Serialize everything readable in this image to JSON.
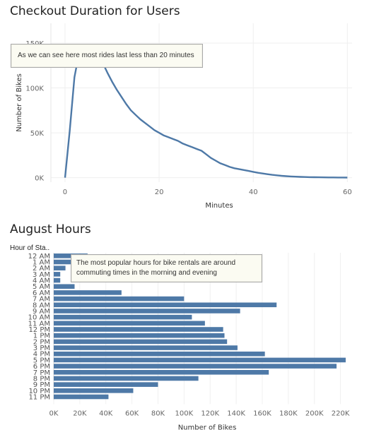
{
  "chart_data": [
    {
      "type": "line",
      "title": "Checkout Duration for Users",
      "xlabel": "Minutes",
      "ylabel": "Number of Bikes",
      "xlim": [
        -3,
        61
      ],
      "ylim": [
        -5000,
        172000
      ],
      "x_ticks": [
        0,
        20,
        40,
        60
      ],
      "x_tick_labels": [
        "0",
        "20",
        "40",
        "60"
      ],
      "y_ticks": [
        0,
        50000,
        100000,
        150000
      ],
      "y_tick_labels": [
        "0K",
        "50K",
        "100K",
        "150K"
      ],
      "color": "#4e79a7",
      "annotation": "As we can see here most rides last less than 20 minutes",
      "x": [
        0,
        1,
        2,
        3,
        4,
        5,
        6,
        7,
        8,
        9,
        10,
        11,
        12,
        13,
        14,
        15,
        16,
        17,
        18,
        19,
        20,
        21,
        22,
        23,
        24,
        25,
        26,
        27,
        28,
        29,
        30,
        31,
        32,
        33,
        34,
        35,
        36,
        37,
        38,
        39,
        40,
        41,
        42,
        43,
        44,
        45,
        46,
        47,
        48,
        49,
        50,
        51,
        52,
        53,
        54,
        55,
        56,
        57,
        58,
        59,
        60
      ],
      "y": [
        0,
        52000,
        112000,
        139000,
        146000,
        147000,
        145000,
        137000,
        128000,
        117000,
        107000,
        98000,
        90000,
        82000,
        75000,
        70000,
        65000,
        61000,
        57000,
        53000,
        50000,
        47000,
        45000,
        43000,
        41000,
        38000,
        36000,
        34000,
        32000,
        30000,
        26000,
        22000,
        19000,
        16000,
        14000,
        12000,
        10500,
        9500,
        8500,
        7500,
        6500,
        5500,
        4700,
        3900,
        3200,
        2600,
        2100,
        1700,
        1400,
        1100,
        900,
        750,
        620,
        500,
        420,
        350,
        300,
        250,
        200,
        160,
        120
      ]
    },
    {
      "type": "bar",
      "orientation": "horizontal",
      "title": "August Hours",
      "header": "Hour of Sta..",
      "xlabel": "Number of Bikes",
      "xlim": [
        0,
        230000
      ],
      "x_ticks": [
        0,
        20000,
        40000,
        60000,
        80000,
        100000,
        120000,
        140000,
        160000,
        180000,
        200000,
        220000
      ],
      "x_tick_labels": [
        "0K",
        "20K",
        "40K",
        "60K",
        "80K",
        "100K",
        "120K",
        "140K",
        "160K",
        "180K",
        "200K",
        "220K"
      ],
      "color": "#4e79a7",
      "annotation": "The most popular hours for bike rentals are around commuting times in the morning and evening",
      "categories": [
        "12 AM",
        "1 AM",
        "2 AM",
        "3 AM",
        "4 AM",
        "5 AM",
        "6 AM",
        "7 AM",
        "8 AM",
        "9 AM",
        "10 AM",
        "11 AM",
        "12 PM",
        "1 PM",
        "2 PM",
        "3 PM",
        "4 PM",
        "5 PM",
        "6 PM",
        "7 PM",
        "8 PM",
        "9 PM",
        "10 PM",
        "11 PM"
      ],
      "values": [
        26000,
        16000,
        9000,
        5000,
        5000,
        16000,
        52000,
        100000,
        171000,
        143000,
        106000,
        116000,
        130000,
        131000,
        133000,
        141000,
        162000,
        224000,
        217000,
        165000,
        111000,
        80000,
        61000,
        42000
      ]
    }
  ]
}
